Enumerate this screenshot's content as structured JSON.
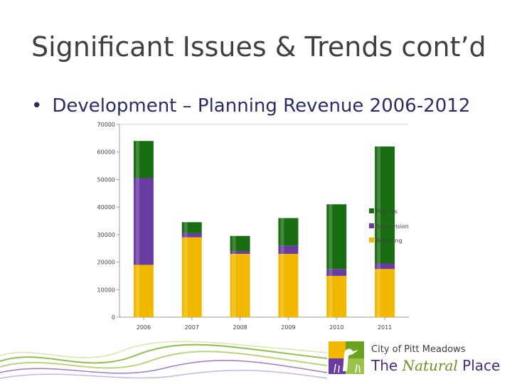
{
  "slide": {
    "title": "Significant Issues & Trends cont’d",
    "bullet_marker": "•",
    "bullet": "Development – Planning Revenue 2006-2012"
  },
  "logo": {
    "line1": "City of Pitt Meadows",
    "line2_a": "The",
    "line2_script": "Natural",
    "line2_b": "Place"
  },
  "chart_data": {
    "type": "bar",
    "stacked": true,
    "categories": [
      "2006",
      "2007",
      "2008",
      "2009",
      "2010",
      "2011"
    ],
    "series": [
      {
        "name": "Rezoning",
        "color": "#f2b800",
        "values": [
          19000,
          29000,
          23000,
          23000,
          15000,
          17500
        ]
      },
      {
        "name": "Subdivision",
        "color": "#6a3ba0",
        "values": [
          31500,
          1500,
          1000,
          3000,
          2500,
          2000
        ]
      },
      {
        "name": "Permits",
        "color": "#1a6e12",
        "values": [
          13500,
          4000,
          5500,
          10000,
          23500,
          42500
        ]
      }
    ],
    "ylim": [
      0,
      70000
    ],
    "yticks": [
      "0",
      "10000",
      "20000",
      "30000",
      "40000",
      "50000",
      "60000",
      "70000"
    ],
    "legend": [
      "Permits",
      "Subdivision",
      "Rezoning"
    ],
    "legend_position": "right",
    "grid": false
  }
}
